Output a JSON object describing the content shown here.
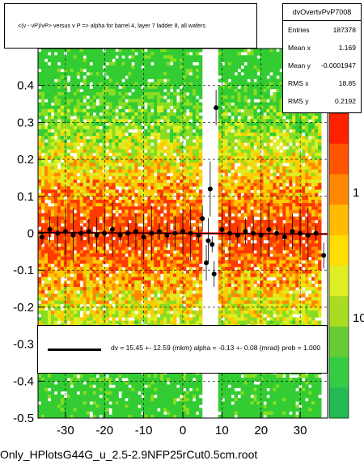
{
  "title": "<(v - vP)/vP> versus   v P => alpha for barrel 4, layer 7 ladder 8, all wafers",
  "stats": {
    "name": "dvOvertvPvP7008",
    "rows": [
      {
        "label": "Entries",
        "value": "187378"
      },
      {
        "label": "Mean x",
        "value": "1.169"
      },
      {
        "label": "Mean y",
        "value": "-0.0001947"
      },
      {
        "label": "RMS x",
        "value": "18.85"
      },
      {
        "label": "RMS y",
        "value": "0.2192"
      }
    ]
  },
  "fit": {
    "text": "dv =   15.45 +- 12.59 (mkm) alpha =   -0.13 +- 0.08 (mrad) prob = 1.000"
  },
  "footer": "Only_HPlotsG44G_u_2.5-2.9NFP25rCut0.5cm.root",
  "colors": {
    "axis": "#000000",
    "fit_line": "#ff0000",
    "points": "#000000",
    "heat_low": "#22cc33",
    "heat_mid": "#ffaa00",
    "heat_high": "#ff3300"
  },
  "chart_data": {
    "type": "scatter",
    "xlim": [
      -37,
      37
    ],
    "ylim": [
      -0.5,
      0.5
    ],
    "x_ticks": [
      -30,
      -20,
      -10,
      0,
      10,
      20,
      30
    ],
    "y_ticks": [
      -0.5,
      -0.4,
      -0.3,
      -0.2,
      -0.1,
      0,
      0.1,
      0.2,
      0.3,
      0.4
    ],
    "z_ticks": [
      "1",
      "10"
    ],
    "grid": true,
    "series": [
      {
        "points": [
          [
            -36,
            -0.01
          ],
          [
            -34,
            0.01
          ],
          [
            -32,
            0.0
          ],
          [
            -30,
            0.005
          ],
          [
            -28,
            -0.005
          ],
          [
            -26,
            0.0
          ],
          [
            -24,
            0.005
          ],
          [
            -22,
            -0.005
          ],
          [
            -20,
            0.0
          ],
          [
            -18,
            0.01
          ],
          [
            -16,
            -0.005
          ],
          [
            -14,
            0.0
          ],
          [
            -12,
            0.005
          ],
          [
            -10,
            -0.01
          ],
          [
            -8,
            0.0
          ],
          [
            -6,
            0.005
          ],
          [
            -4,
            -0.005
          ],
          [
            -2,
            0.0
          ],
          [
            0,
            0.005
          ],
          [
            2,
            0.0
          ],
          [
            4,
            -0.005
          ],
          [
            5,
            0.04
          ],
          [
            6,
            -0.08
          ],
          [
            6.5,
            -0.02
          ],
          [
            7,
            0.12
          ],
          [
            7.5,
            -0.03
          ],
          [
            8,
            -0.11
          ],
          [
            8.5,
            0.34
          ],
          [
            10,
            0.01
          ],
          [
            12,
            0.0
          ],
          [
            14,
            -0.005
          ],
          [
            16,
            0.005
          ],
          [
            18,
            0.0
          ],
          [
            20,
            -0.005
          ],
          [
            22,
            0.01
          ],
          [
            24,
            0.0
          ],
          [
            26,
            -0.01
          ],
          [
            28,
            0.005
          ],
          [
            30,
            0.0
          ],
          [
            32,
            -0.005
          ],
          [
            34,
            0.0
          ],
          [
            36,
            -0.06
          ]
        ]
      }
    ],
    "fit": {
      "x0": -37,
      "y0": 0.002,
      "x1": 37,
      "y1": -0.002
    }
  }
}
